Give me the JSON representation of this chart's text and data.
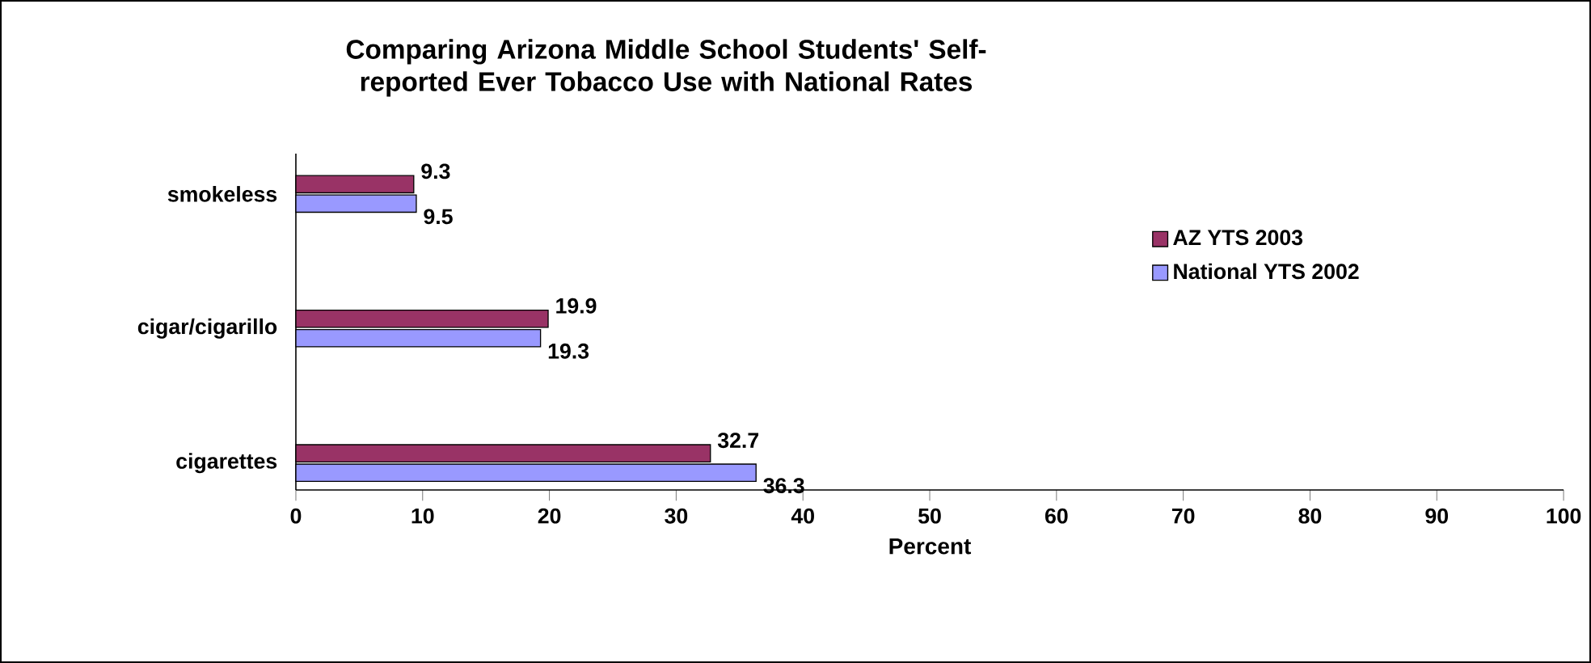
{
  "chart_data": {
    "type": "bar",
    "orientation": "horizontal",
    "title": "Comparing Arizona Middle School Students' Self-reported Ever Tobacco Use with National Rates",
    "xlabel": "Percent",
    "categories": [
      "smokeless",
      "cigar/cigarillo",
      "cigarettes"
    ],
    "series": [
      {
        "name": "AZ YTS 2003",
        "color": "#993366",
        "values": [
          9.3,
          19.9,
          32.7
        ]
      },
      {
        "name": "National YTS 2002",
        "color": "#9999ff",
        "values": [
          9.5,
          19.3,
          36.3
        ]
      }
    ],
    "xlim": [
      0,
      100
    ],
    "xticks": [
      0,
      10,
      20,
      30,
      40,
      50,
      60,
      70,
      80,
      90,
      100
    ],
    "data_labels": true,
    "legend": "right",
    "grid": false
  }
}
